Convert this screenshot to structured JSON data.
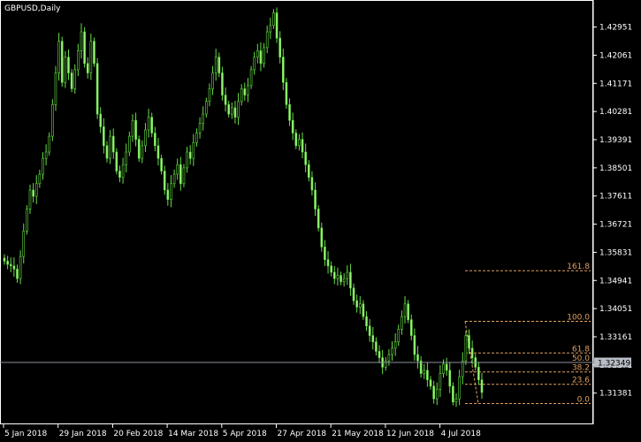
{
  "chart_data": {
    "type": "candlestick",
    "title": "GBPUSD,Daily",
    "x_tick_labels": [
      "5 Jan 2018",
      "29 Jan 2018",
      "20 Feb 2018",
      "14 Mar 2018",
      "5 Apr 2018",
      "27 Apr 2018",
      "21 May 2018",
      "12 Jun 2018",
      "4 Jul 2018"
    ],
    "y_tick_labels": [
      "1.42951",
      "1.42061",
      "1.41171",
      "1.40281",
      "1.39391",
      "1.38501",
      "1.37611",
      "1.36721",
      "1.35831",
      "1.34941",
      "1.34051",
      "1.33161",
      "1.32271",
      "1.31381"
    ],
    "ylim": [
      1.3045,
      1.4375
    ],
    "current_price": "1.32349",
    "fibonacci_levels": [
      {
        "label": "161.8",
        "price": 1.3525
      },
      {
        "label": "100.0",
        "price": 1.3365
      },
      {
        "label": "61.8",
        "price": 1.3265
      },
      {
        "label": "50.0",
        "price": 1.3235
      },
      {
        "label": "38.2",
        "price": 1.3205
      },
      {
        "label": "23.6",
        "price": 1.3166
      },
      {
        "label": "0.0",
        "price": 1.3105
      }
    ],
    "close_prices": [
      1.3555,
      1.3545,
      1.354,
      1.353,
      1.35,
      1.357,
      1.365,
      1.372,
      1.378,
      1.376,
      1.38,
      1.383,
      1.388,
      1.39,
      1.395,
      1.405,
      1.415,
      1.425,
      1.412,
      1.42,
      1.415,
      1.41,
      1.416,
      1.422,
      1.428,
      1.418,
      1.415,
      1.425,
      1.418,
      1.402,
      1.398,
      1.392,
      1.388,
      1.395,
      1.39,
      1.384,
      1.382,
      1.386,
      1.39,
      1.395,
      1.4,
      1.394,
      1.388,
      1.392,
      1.397,
      1.401,
      1.396,
      1.392,
      1.388,
      1.384,
      1.378,
      1.375,
      1.38,
      1.383,
      1.386,
      1.38,
      1.385,
      1.39,
      1.388,
      1.393,
      1.396,
      1.399,
      1.402,
      1.406,
      1.41,
      1.415,
      1.42,
      1.415,
      1.408,
      1.405,
      1.402,
      1.404,
      1.401,
      1.406,
      1.41,
      1.408,
      1.411,
      1.416,
      1.42,
      1.422,
      1.418,
      1.423,
      1.428,
      1.43,
      1.434,
      1.426,
      1.42,
      1.412,
      1.405,
      1.4,
      1.396,
      1.392,
      1.394,
      1.39,
      1.386,
      1.382,
      1.378,
      1.372,
      1.366,
      1.36,
      1.356,
      1.354,
      1.352,
      1.35,
      1.351,
      1.349,
      1.35,
      1.352,
      1.347,
      1.343,
      1.341,
      1.342,
      1.338,
      1.335,
      1.332,
      1.33,
      1.327,
      1.325,
      1.322,
      1.324,
      1.326,
      1.328,
      1.33,
      1.334,
      1.338,
      1.342,
      1.337,
      1.332,
      1.326,
      1.324,
      1.32,
      1.321,
      1.318,
      1.316,
      1.312,
      1.315,
      1.32,
      1.323,
      1.321,
      1.316,
      1.311,
      1.312,
      1.319,
      1.324,
      1.332,
      1.328,
      1.325,
      1.322,
      1.318,
      1.314
    ]
  }
}
